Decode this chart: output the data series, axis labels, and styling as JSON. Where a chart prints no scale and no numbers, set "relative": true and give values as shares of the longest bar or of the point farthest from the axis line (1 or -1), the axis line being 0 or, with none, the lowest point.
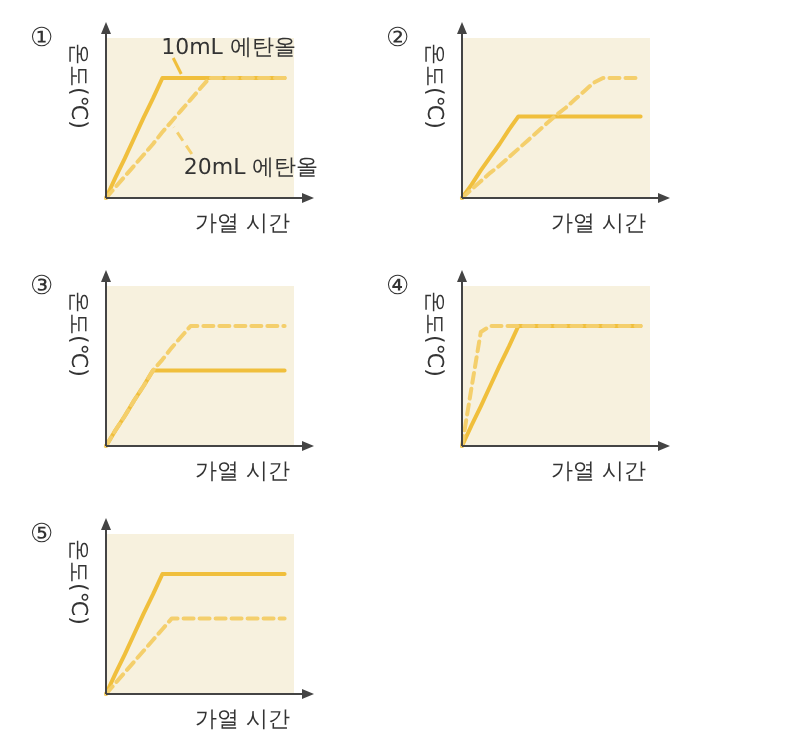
{
  "chart_data": [
    {
      "type": "line",
      "title": "①",
      "ylabel": "온도(℃)",
      "xlabel": "가열 시간",
      "relative": true,
      "categories": [
        null,
        null,
        null,
        null,
        null,
        null,
        null,
        null,
        null,
        null,
        null,
        null,
        null,
        null,
        null,
        null,
        null,
        null,
        null,
        null
      ],
      "series": [
        {
          "name": "10mL 에탄올",
          "color": "#f0bf3c",
          "line_style": "solid",
          "values": [
            0,
            0.17,
            0.33,
            0.5,
            0.67,
            0.83,
            1,
            1,
            1,
            1,
            1,
            1,
            1,
            1,
            1,
            1,
            1,
            1,
            1,
            1
          ]
        },
        {
          "name": "20mL 에탄올",
          "color": "#f4cf6c",
          "line_style": "dashed",
          "values": [
            0,
            0.09,
            0.18,
            0.27,
            0.36,
            0.45,
            0.55,
            0.64,
            0.73,
            0.82,
            0.91,
            1,
            1,
            1,
            1,
            1,
            1,
            1,
            1,
            1
          ]
        }
      ]
    },
    {
      "type": "line",
      "title": "②",
      "ylabel": "온도(℃)",
      "xlabel": "가열 시간",
      "relative": true,
      "categories": [
        null,
        null,
        null,
        null,
        null,
        null,
        null,
        null,
        null,
        null,
        null,
        null,
        null,
        null,
        null,
        null,
        null,
        null,
        null,
        null
      ],
      "series": [
        {
          "color": "#f0bf3c",
          "line_style": "solid",
          "values": [
            0,
            0.11,
            0.23,
            0.34,
            0.45,
            0.57,
            0.68,
            0.68,
            0.68,
            0.68,
            0.68,
            0.68,
            0.68,
            0.68,
            0.68,
            0.68,
            0.68,
            0.68,
            0.68,
            0.68
          ]
        },
        {
          "color": "#f4cf6c",
          "line_style": "dashed",
          "values": [
            0,
            0.07,
            0.14,
            0.21,
            0.27,
            0.34,
            0.41,
            0.48,
            0.55,
            0.62,
            0.69,
            0.75,
            0.82,
            0.89,
            0.96,
            1,
            1,
            1,
            1,
            1
          ]
        }
      ]
    },
    {
      "type": "line",
      "title": "③",
      "ylabel": "온도(℃)",
      "xlabel": "가열 시간",
      "relative": true,
      "categories": [
        null,
        null,
        null,
        null,
        null,
        null,
        null,
        null,
        null,
        null,
        null,
        null,
        null,
        null,
        null,
        null,
        null,
        null,
        null,
        null
      ],
      "series": [
        {
          "color": "#f0bf3c",
          "line_style": "solid",
          "values": [
            0,
            0.13,
            0.25,
            0.38,
            0.5,
            0.63,
            0.63,
            0.63,
            0.63,
            0.63,
            0.63,
            0.63,
            0.63,
            0.63,
            0.63,
            0.63,
            0.63,
            0.63,
            0.63,
            0.63
          ]
        },
        {
          "color": "#f4cf6c",
          "line_style": "dashed",
          "values": [
            0,
            0.13,
            0.25,
            0.38,
            0.5,
            0.63,
            0.72,
            0.82,
            0.91,
            1,
            1,
            1,
            1,
            1,
            1,
            1,
            1,
            1,
            1,
            1
          ]
        }
      ]
    },
    {
      "type": "line",
      "title": "④",
      "ylabel": "온도(℃)",
      "xlabel": "가열 시간",
      "relative": true,
      "categories": [
        null,
        null,
        null,
        null,
        null,
        null,
        null,
        null,
        null,
        null,
        null,
        null,
        null,
        null,
        null,
        null,
        null,
        null,
        null,
        null
      ],
      "series": [
        {
          "color": "#f0bf3c",
          "line_style": "solid",
          "values": [
            0,
            0.17,
            0.33,
            0.5,
            0.67,
            0.83,
            1,
            1,
            1,
            1,
            1,
            1,
            1,
            1,
            1,
            1,
            1,
            1,
            1,
            1
          ]
        },
        {
          "color": "#f4cf6c",
          "line_style": "dashed",
          "values": [
            0,
            0.48,
            0.95,
            1,
            1,
            1,
            1,
            1,
            1,
            1,
            1,
            1,
            1,
            1,
            1,
            1,
            1,
            1,
            1,
            1
          ]
        }
      ]
    },
    {
      "type": "line",
      "title": "⑤",
      "ylabel": "온도(℃)",
      "xlabel": "가열 시간",
      "relative": true,
      "categories": [
        null,
        null,
        null,
        null,
        null,
        null,
        null,
        null,
        null,
        null,
        null,
        null,
        null,
        null,
        null,
        null,
        null,
        null,
        null,
        null
      ],
      "series": [
        {
          "color": "#f0bf3c",
          "line_style": "solid",
          "values": [
            0,
            0.17,
            0.33,
            0.5,
            0.67,
            0.83,
            1,
            1,
            1,
            1,
            1,
            1,
            1,
            1,
            1,
            1,
            1,
            1,
            1,
            1
          ]
        },
        {
          "color": "#f4cf6c",
          "line_style": "dashed",
          "values": [
            0,
            0.09,
            0.18,
            0.27,
            0.36,
            0.45,
            0.54,
            0.63,
            0.63,
            0.63,
            0.63,
            0.63,
            0.63,
            0.63,
            0.63,
            0.63,
            0.63,
            0.63,
            0.63,
            0.63
          ]
        }
      ]
    }
  ]
}
